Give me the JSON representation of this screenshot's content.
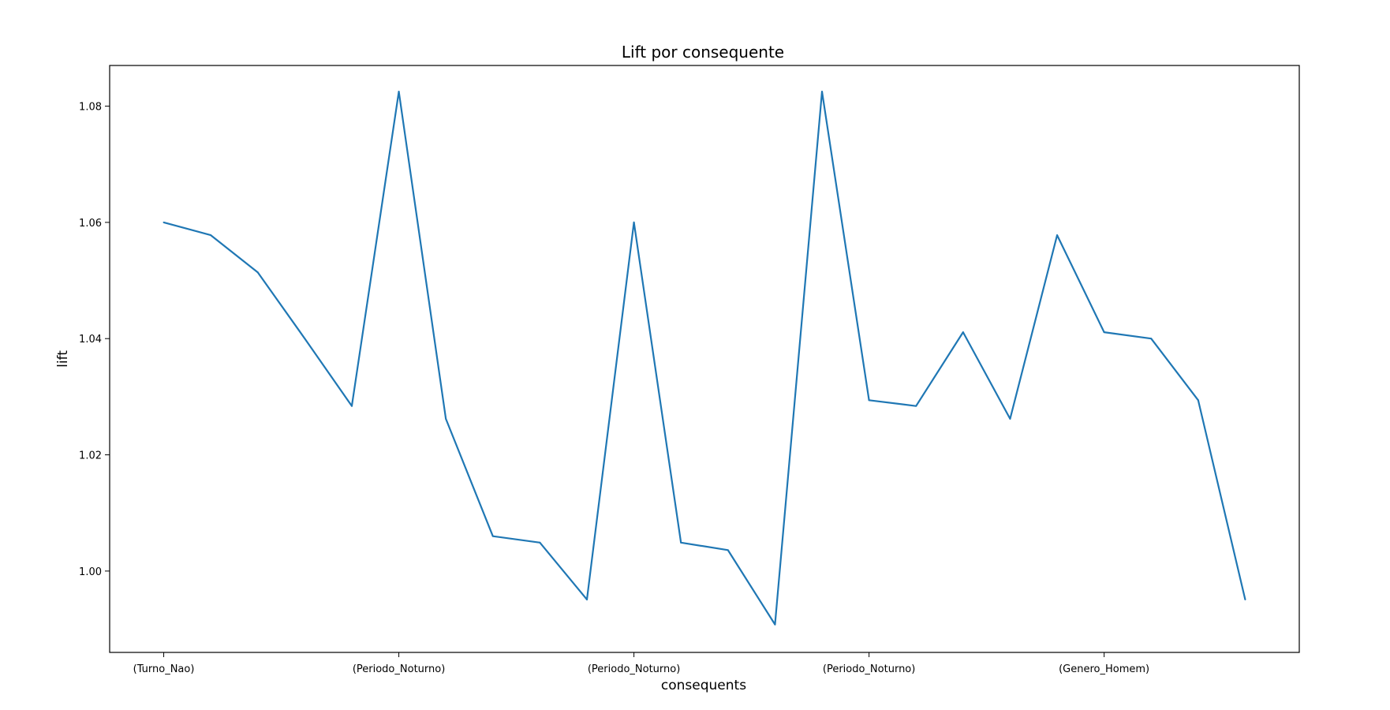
{
  "chart_data": {
    "type": "line",
    "title": "Lift por consequente",
    "xlabel": "consequents",
    "ylabel": "lift",
    "grid": false,
    "ylim": [
      0.986,
      1.087
    ],
    "yticks": [
      1.0,
      1.02,
      1.04,
      1.06,
      1.08
    ],
    "ytick_labels": [
      "1.00",
      "1.02",
      "1.04",
      "1.06",
      "1.08"
    ],
    "xtick_positions": [
      0,
      5,
      10,
      15,
      20
    ],
    "xtick_labels": [
      "(Turno_Nao)",
      "(Periodo_Noturno)",
      "(Periodo_Noturno)",
      "(Periodo_Noturno)",
      "(Genero_Homem)"
    ],
    "series": [
      {
        "color": "#1f77b4",
        "x": [
          0,
          1,
          2,
          3,
          4,
          5,
          6,
          7,
          8,
          9,
          10,
          11,
          12,
          13,
          14,
          15,
          16,
          17,
          18,
          19,
          20,
          21,
          22,
          23
        ],
        "values": [
          1.06,
          1.0578,
          1.0514,
          1.04,
          1.0284,
          1.0825,
          1.0262,
          1.006,
          1.0049,
          0.9951,
          1.06,
          1.0049,
          1.0036,
          0.9908,
          1.0825,
          1.0294,
          1.0284,
          1.0411,
          1.0262,
          1.0578,
          1.0411,
          1.04,
          1.0294,
          0.9951
        ]
      }
    ]
  }
}
